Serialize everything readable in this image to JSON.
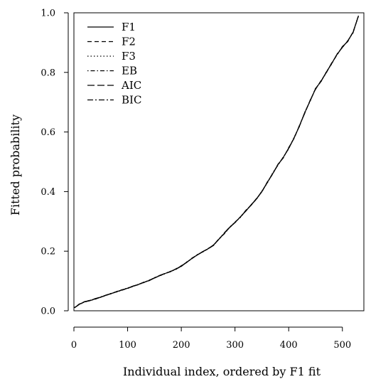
{
  "chart_data": {
    "type": "line",
    "title": "",
    "xlabel": "Individual index, ordered by F1 fit",
    "ylabel": "Fitted probability",
    "xlim": [
      0,
      540
    ],
    "ylim": [
      0,
      1.0
    ],
    "xticks": [
      0,
      100,
      200,
      300,
      400,
      500
    ],
    "xtick_labels": [
      "0",
      "100",
      "200",
      "300",
      "400",
      "500"
    ],
    "yticks": [
      0.0,
      0.2,
      0.4,
      0.6,
      0.8,
      1.0
    ],
    "ytick_labels": [
      "0.0",
      "0.2",
      "0.4",
      "0.6",
      "0.8",
      "1.0"
    ],
    "grid": false,
    "legend_position": "top-left",
    "x": [
      1,
      10,
      20,
      30,
      40,
      50,
      60,
      70,
      80,
      90,
      100,
      110,
      120,
      130,
      140,
      150,
      160,
      170,
      180,
      190,
      200,
      210,
      220,
      230,
      240,
      250,
      260,
      270,
      280,
      290,
      300,
      310,
      320,
      330,
      340,
      350,
      360,
      370,
      380,
      390,
      400,
      410,
      420,
      430,
      440,
      450,
      460,
      470,
      480,
      490,
      500,
      510,
      520,
      530
    ],
    "series": [
      {
        "name": "F1",
        "dash": "",
        "values": [
          0.01,
          0.022,
          0.03,
          0.034,
          0.04,
          0.046,
          0.052,
          0.058,
          0.064,
          0.07,
          0.076,
          0.082,
          0.088,
          0.095,
          0.102,
          0.11,
          0.118,
          0.125,
          0.132,
          0.14,
          0.15,
          0.163,
          0.176,
          0.188,
          0.198,
          0.208,
          0.22,
          0.24,
          0.26,
          0.28,
          0.296,
          0.315,
          0.335,
          0.355,
          0.375,
          0.4,
          0.43,
          0.46,
          0.49,
          0.515,
          0.545,
          0.58,
          0.62,
          0.665,
          0.705,
          0.745,
          0.77,
          0.8,
          0.83,
          0.86,
          0.885,
          0.905,
          0.935,
          0.99
        ]
      },
      {
        "name": "F2",
        "dash": "6,4",
        "values": [
          0.01,
          0.021,
          0.031,
          0.035,
          0.041,
          0.045,
          0.053,
          0.057,
          0.065,
          0.071,
          0.075,
          0.083,
          0.087,
          0.096,
          0.101,
          0.111,
          0.117,
          0.126,
          0.131,
          0.141,
          0.151,
          0.162,
          0.177,
          0.187,
          0.199,
          0.207,
          0.221,
          0.239,
          0.262,
          0.279,
          0.297,
          0.314,
          0.337,
          0.354,
          0.377,
          0.398,
          0.432,
          0.458,
          0.492,
          0.513,
          0.548,
          0.578,
          0.622,
          0.663,
          0.707,
          0.743,
          0.772,
          0.798,
          0.832,
          0.858,
          0.887,
          0.903,
          0.937,
          0.988
        ]
      },
      {
        "name": "F3",
        "dash": "1.5,3",
        "values": [
          0.011,
          0.022,
          0.03,
          0.034,
          0.04,
          0.047,
          0.051,
          0.059,
          0.063,
          0.07,
          0.077,
          0.081,
          0.089,
          0.094,
          0.103,
          0.109,
          0.119,
          0.124,
          0.133,
          0.139,
          0.149,
          0.164,
          0.175,
          0.189,
          0.197,
          0.209,
          0.219,
          0.241,
          0.259,
          0.281,
          0.295,
          0.316,
          0.334,
          0.356,
          0.374,
          0.402,
          0.428,
          0.462,
          0.488,
          0.517,
          0.543,
          0.582,
          0.618,
          0.667,
          0.703,
          0.747,
          0.768,
          0.802,
          0.828,
          0.862,
          0.883,
          0.907,
          0.933,
          0.992
        ]
      },
      {
        "name": "EB",
        "dash": "1.5,3,6,3",
        "values": [
          0.01,
          0.023,
          0.029,
          0.035,
          0.039,
          0.046,
          0.053,
          0.058,
          0.064,
          0.069,
          0.076,
          0.083,
          0.088,
          0.095,
          0.102,
          0.111,
          0.118,
          0.125,
          0.131,
          0.14,
          0.15,
          0.162,
          0.176,
          0.188,
          0.198,
          0.209,
          0.22,
          0.242,
          0.258,
          0.28,
          0.298,
          0.313,
          0.336,
          0.355,
          0.376,
          0.399,
          0.431,
          0.459,
          0.491,
          0.514,
          0.546,
          0.579,
          0.621,
          0.664,
          0.706,
          0.744,
          0.771,
          0.799,
          0.831,
          0.859,
          0.886,
          0.904,
          0.936,
          0.989
        ]
      },
      {
        "name": "AIC",
        "dash": "10,4",
        "values": [
          0.01,
          0.022,
          0.031,
          0.034,
          0.041,
          0.046,
          0.052,
          0.058,
          0.065,
          0.07,
          0.076,
          0.082,
          0.089,
          0.095,
          0.101,
          0.11,
          0.119,
          0.125,
          0.132,
          0.139,
          0.151,
          0.163,
          0.175,
          0.188,
          0.199,
          0.208,
          0.221,
          0.24,
          0.261,
          0.281,
          0.296,
          0.315,
          0.334,
          0.356,
          0.375,
          0.401,
          0.429,
          0.461,
          0.489,
          0.516,
          0.544,
          0.581,
          0.619,
          0.666,
          0.704,
          0.746,
          0.769,
          0.801,
          0.829,
          0.861,
          0.884,
          0.906,
          0.934,
          0.991
        ]
      },
      {
        "name": "BIC",
        "dash": "8,3,2,3",
        "values": [
          0.011,
          0.021,
          0.03,
          0.035,
          0.04,
          0.045,
          0.052,
          0.059,
          0.064,
          0.071,
          0.075,
          0.082,
          0.088,
          0.096,
          0.102,
          0.11,
          0.118,
          0.126,
          0.132,
          0.14,
          0.149,
          0.163,
          0.176,
          0.187,
          0.198,
          0.208,
          0.219,
          0.24,
          0.26,
          0.279,
          0.297,
          0.315,
          0.335,
          0.354,
          0.376,
          0.4,
          0.43,
          0.46,
          0.49,
          0.515,
          0.545,
          0.58,
          0.62,
          0.665,
          0.705,
          0.745,
          0.77,
          0.8,
          0.83,
          0.86,
          0.885,
          0.905,
          0.935,
          0.99
        ]
      }
    ]
  }
}
